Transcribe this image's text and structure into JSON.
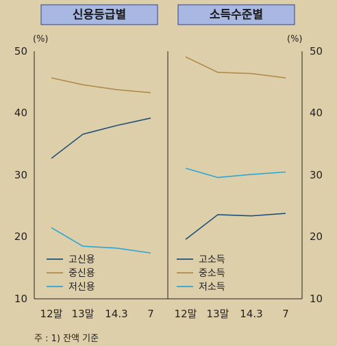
{
  "colors": {
    "background": "#ddcfa9",
    "title_box": "#a9b8e2",
    "title_box_border": "#2e3f8f",
    "high": "#1f4e79",
    "mid": "#b08a4a",
    "low": "#2aa5d6",
    "axis": "#231f20"
  },
  "chart_data": [
    {
      "type": "line",
      "title": "신용등급별",
      "unit": "(%)",
      "categories": [
        "12말",
        "13말",
        "14.3",
        "7"
      ],
      "ylim": [
        10,
        50
      ],
      "yticks": [
        "50",
        "40",
        "30",
        "20",
        "10"
      ],
      "legend_position": "bottom-left",
      "series": [
        {
          "name": "고신용",
          "color_key": "high",
          "values": [
            32.7,
            36.6,
            38.0,
            39.2
          ]
        },
        {
          "name": "중신용",
          "color_key": "mid",
          "values": [
            45.7,
            44.6,
            43.8,
            43.3
          ]
        },
        {
          "name": "저신용",
          "color_key": "low",
          "values": [
            21.5,
            18.5,
            18.2,
            17.4
          ]
        }
      ]
    },
    {
      "type": "line",
      "title": "소득수준별",
      "unit": "(%)",
      "categories": [
        "12말",
        "13말",
        "14.3",
        "7"
      ],
      "ylim": [
        10,
        50
      ],
      "yticks": [
        "50",
        "40",
        "30",
        "20",
        "10"
      ],
      "legend_position": "bottom-left",
      "series": [
        {
          "name": "고소득",
          "color_key": "high",
          "values": [
            19.6,
            23.6,
            23.4,
            23.8
          ]
        },
        {
          "name": "중소득",
          "color_key": "mid",
          "values": [
            49.1,
            46.6,
            46.4,
            45.7
          ]
        },
        {
          "name": "저소득",
          "color_key": "low",
          "values": [
            31.1,
            29.6,
            30.1,
            30.5
          ]
        }
      ]
    }
  ],
  "footnote": "주 : 1) 잔액 기준"
}
